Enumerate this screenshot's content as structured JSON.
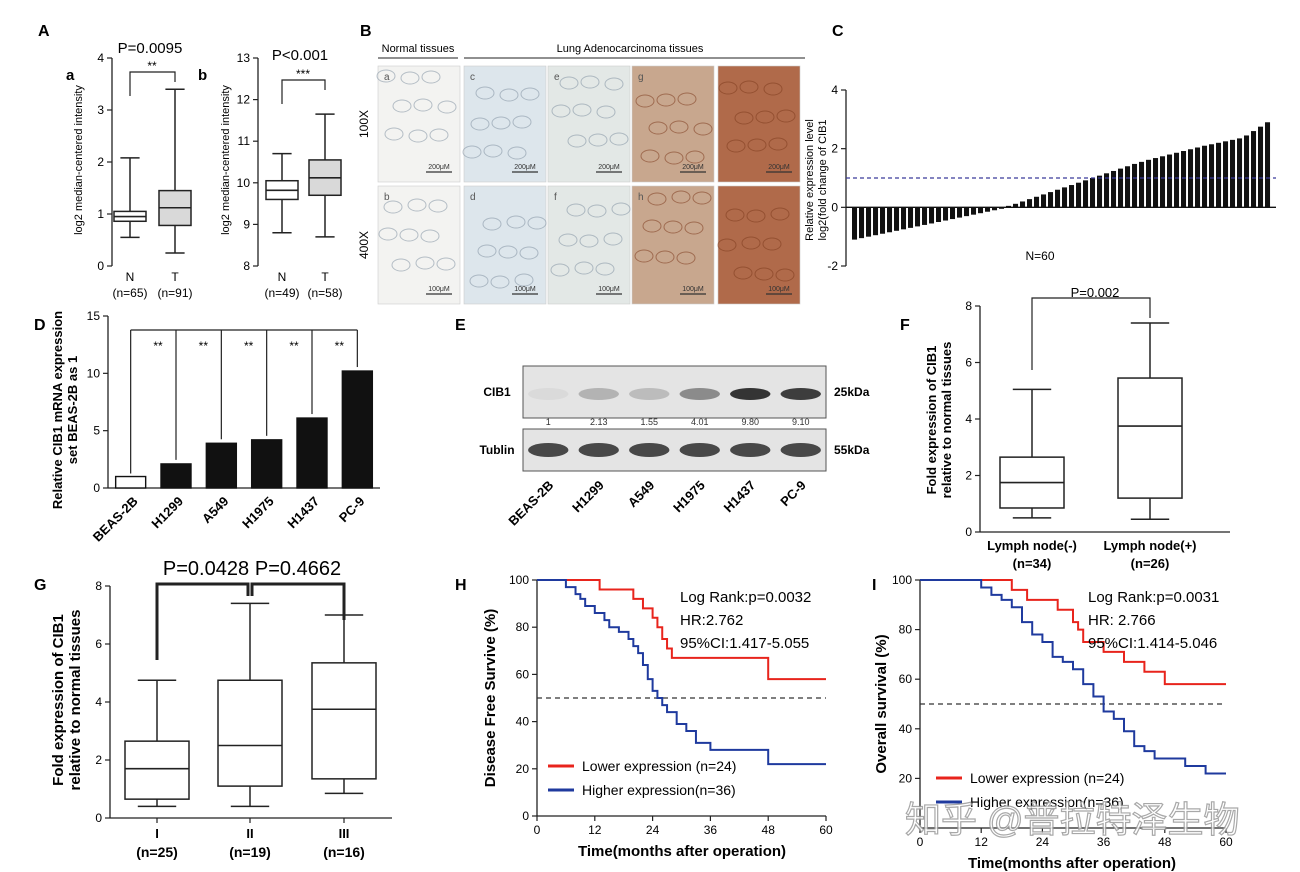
{
  "figure": {
    "panel_letters": [
      "A",
      "B",
      "C",
      "D",
      "E",
      "F",
      "G",
      "H",
      "I"
    ],
    "watermark": "知乎 @普拉特泽生物"
  },
  "chart_data": [
    {
      "id": "A-a",
      "type": "box",
      "sublabel": "a",
      "pvalue": "P=0.0095",
      "sig": "**",
      "ylabel": "log2 median-centered intensity",
      "ylim": [
        0,
        4
      ],
      "yticks": [
        0,
        1,
        2,
        3,
        4
      ],
      "categories": [
        "N",
        "T"
      ],
      "category_n": [
        "(n=65)",
        "(n=91)"
      ],
      "boxes": [
        {
          "min": 0.55,
          "q1": 0.86,
          "median": 0.95,
          "q3": 1.05,
          "max": 2.08,
          "fill": "#ffffff"
        },
        {
          "min": 0.25,
          "q1": 0.78,
          "median": 1.12,
          "q3": 1.45,
          "max": 3.4,
          "fill": "#d9d9d9"
        }
      ]
    },
    {
      "id": "A-b",
      "type": "box",
      "sublabel": "b",
      "pvalue": "P<0.001",
      "sig": "***",
      "ylabel": "log2 median-centered intensity",
      "ylim": [
        8,
        13
      ],
      "yticks": [
        8,
        9,
        10,
        11,
        12,
        13
      ],
      "categories": [
        "N",
        "T"
      ],
      "category_n": [
        "(n=49)",
        "(n=58)"
      ],
      "boxes": [
        {
          "min": 8.8,
          "q1": 9.6,
          "median": 9.82,
          "q3": 10.05,
          "max": 10.7,
          "fill": "#ffffff"
        },
        {
          "min": 8.7,
          "q1": 9.7,
          "median": 10.12,
          "q3": 10.55,
          "max": 11.65,
          "fill": "#d9d9d9"
        }
      ]
    },
    {
      "id": "B",
      "type": "image-grid",
      "header_left": "Normal tissues",
      "header_right": "Lung Adenocarcinoma tissues",
      "row_labels": [
        "100X",
        "400X"
      ],
      "top_letters": [
        "a",
        "c",
        "e",
        "g",
        ""
      ],
      "bottom_letters": [
        "b",
        "d",
        "f",
        "h",
        ""
      ],
      "top_scalebars": [
        "200μM",
        "200μM",
        "200μM",
        "200μM",
        "200μM"
      ],
      "bottom_scalebars": [
        "100μM",
        "100μM",
        "100μM",
        "100μM",
        "100μM"
      ],
      "tile_colors": [
        "#f3f3f1",
        "#dde6ec",
        "#e3e8e6",
        "#c8a78e",
        "#b06a4a"
      ]
    },
    {
      "id": "C",
      "type": "bar",
      "ylabel": "Relative expression level\nlog2(fold change of CIB1",
      "ylim": [
        -2,
        4
      ],
      "yticks": [
        -2,
        0,
        2,
        4
      ],
      "threshold": 1,
      "note": "N=60",
      "values": [
        -1.1,
        -1.05,
        -1.0,
        -0.95,
        -0.9,
        -0.85,
        -0.8,
        -0.75,
        -0.7,
        -0.65,
        -0.6,
        -0.55,
        -0.5,
        -0.45,
        -0.4,
        -0.35,
        -0.3,
        -0.25,
        -0.2,
        -0.15,
        -0.1,
        -0.05,
        0.05,
        0.12,
        0.2,
        0.28,
        0.36,
        0.44,
        0.52,
        0.6,
        0.68,
        0.76,
        0.84,
        0.92,
        1.0,
        1.08,
        1.16,
        1.24,
        1.32,
        1.4,
        1.48,
        1.55,
        1.62,
        1.68,
        1.74,
        1.8,
        1.86,
        1.92,
        1.98,
        2.04,
        2.1,
        2.15,
        2.2,
        2.25,
        2.3,
        2.35,
        2.45,
        2.6,
        2.75,
        2.9
      ]
    },
    {
      "id": "D",
      "type": "bar",
      "ylabel": "Relative CIB1 mRNA expression\nset BEAS-2B as 1",
      "ylim": [
        0,
        15
      ],
      "yticks": [
        0,
        5,
        10,
        15
      ],
      "categories": [
        "BEAS-2B",
        "H1299",
        "A549",
        "H1975",
        "H1437",
        "PC-9"
      ],
      "values": [
        1.0,
        2.1,
        3.9,
        4.2,
        6.1,
        10.2
      ],
      "sig": [
        "**",
        "**",
        "**",
        "**",
        "**"
      ]
    },
    {
      "id": "E",
      "type": "western-blot",
      "bands": [
        "CIB1",
        "Tublin"
      ],
      "sizes": [
        "25kDa",
        "55kDa"
      ],
      "quant": [
        "1",
        "2.13",
        "1.55",
        "4.01",
        "9.80",
        "9.10"
      ],
      "cell_lines": [
        "BEAS-2B",
        "H1299",
        "A549",
        "H1975",
        "H1437",
        "PC-9"
      ],
      "cib1_intensity": [
        0.05,
        0.25,
        0.2,
        0.45,
        0.9,
        0.85
      ]
    },
    {
      "id": "F",
      "type": "box",
      "pvalue": "P=0.002",
      "ylabel": "Fold expression of CIB1\nrelative to normal tissues",
      "ylim": [
        0,
        8
      ],
      "yticks": [
        0,
        2,
        4,
        6,
        8
      ],
      "categories": [
        "Lymph node(-)",
        "Lymph node(+)"
      ],
      "category_n": [
        "(n=34)",
        "(n=26)"
      ],
      "boxes": [
        {
          "min": 0.5,
          "q1": 0.85,
          "median": 1.75,
          "q3": 2.65,
          "max": 5.05,
          "fill": "#ffffff"
        },
        {
          "min": 0.45,
          "q1": 1.2,
          "median": 3.75,
          "q3": 5.45,
          "max": 7.4,
          "fill": "#ffffff"
        }
      ]
    },
    {
      "id": "G",
      "type": "box",
      "pvalues": [
        "P=0.0428",
        "P=0.4662"
      ],
      "ylabel": "Fold expression of CIB1\nrelative to normal tissues",
      "ylim": [
        0,
        8
      ],
      "yticks": [
        0,
        2,
        4,
        6,
        8
      ],
      "categories": [
        "I",
        "II",
        "III"
      ],
      "category_n": [
        "(n=25)",
        "(n=19)",
        "(n=16)"
      ],
      "boxes": [
        {
          "min": 0.4,
          "q1": 0.65,
          "median": 1.7,
          "q3": 2.65,
          "max": 4.75,
          "fill": "#ffffff"
        },
        {
          "min": 0.4,
          "q1": 1.1,
          "median": 2.5,
          "q3": 4.75,
          "max": 7.4,
          "fill": "#ffffff"
        },
        {
          "min": 0.85,
          "q1": 1.35,
          "median": 3.75,
          "q3": 5.35,
          "max": 7.0,
          "fill": "#ffffff"
        }
      ]
    },
    {
      "id": "H",
      "type": "line",
      "xlabel": "Time(months after operation)",
      "ylabel": "Disease Free Survive (%)",
      "xlim": [
        0,
        60
      ],
      "xticks": [
        0,
        12,
        24,
        36,
        48,
        60
      ],
      "ylim": [
        0,
        100
      ],
      "yticks": [
        0,
        20,
        40,
        60,
        80,
        100
      ],
      "stats": [
        "Log Rank:p=0.0032",
        "HR:2.762",
        "95%CI:1.417-5.055"
      ],
      "series": [
        {
          "name": "Lower expression (n=24)",
          "color": "#e8241c",
          "x": [
            0,
            10,
            13,
            18,
            20,
            22,
            24,
            25,
            26,
            27,
            28,
            30,
            48,
            60
          ],
          "y": [
            100,
            100,
            96,
            96,
            92,
            88,
            84,
            80,
            75,
            71,
            67,
            67,
            58,
            58
          ]
        },
        {
          "name": "Higher expression(n=36)",
          "color": "#1f3a9e",
          "x": [
            0,
            5,
            6,
            8,
            9,
            10,
            12,
            14,
            15,
            17,
            19,
            20,
            21,
            22,
            23,
            24,
            25,
            26,
            27,
            29,
            31,
            33,
            36,
            44,
            48,
            60
          ],
          "y": [
            100,
            100,
            97,
            94,
            92,
            89,
            86,
            83,
            80,
            78,
            75,
            72,
            69,
            64,
            58,
            53,
            50,
            47,
            44,
            39,
            36,
            31,
            28,
            28,
            22,
            22
          ]
        }
      ],
      "ref_line": 50
    },
    {
      "id": "I",
      "type": "line",
      "xlabel": "Time(months after operation)",
      "ylabel": "Overall survival (%)",
      "xlim": [
        0,
        60
      ],
      "xticks": [
        0,
        12,
        24,
        36,
        48,
        60
      ],
      "ylim": [
        0,
        100
      ],
      "yticks": [
        20,
        40,
        60,
        80,
        100
      ],
      "stats": [
        "Log Rank:p=0.0031",
        "HR: 2.766",
        "95%CI:1.414-5.046"
      ],
      "series": [
        {
          "name": "Lower expression (n=24)",
          "color": "#e8241c",
          "x": [
            0,
            14,
            18,
            21,
            24,
            27,
            30,
            31,
            32,
            34,
            36,
            40,
            44,
            48,
            52,
            60
          ],
          "y": [
            100,
            100,
            96,
            92,
            92,
            88,
            83,
            80,
            75,
            75,
            71,
            67,
            63,
            58,
            58,
            58
          ]
        },
        {
          "name": "Higher expression(n=36)",
          "color": "#1f3a9e",
          "x": [
            0,
            10,
            12,
            14,
            16,
            18,
            20,
            22,
            24,
            26,
            28,
            30,
            32,
            34,
            36,
            38,
            40,
            42,
            44,
            46,
            48,
            50,
            52,
            54,
            56,
            58,
            60
          ],
          "y": [
            100,
            100,
            97,
            94,
            92,
            89,
            83,
            78,
            75,
            69,
            67,
            64,
            58,
            53,
            47,
            44,
            39,
            33,
            31,
            28,
            28,
            28,
            25,
            25,
            22,
            22,
            22
          ]
        }
      ],
      "ref_line": 50
    }
  ]
}
